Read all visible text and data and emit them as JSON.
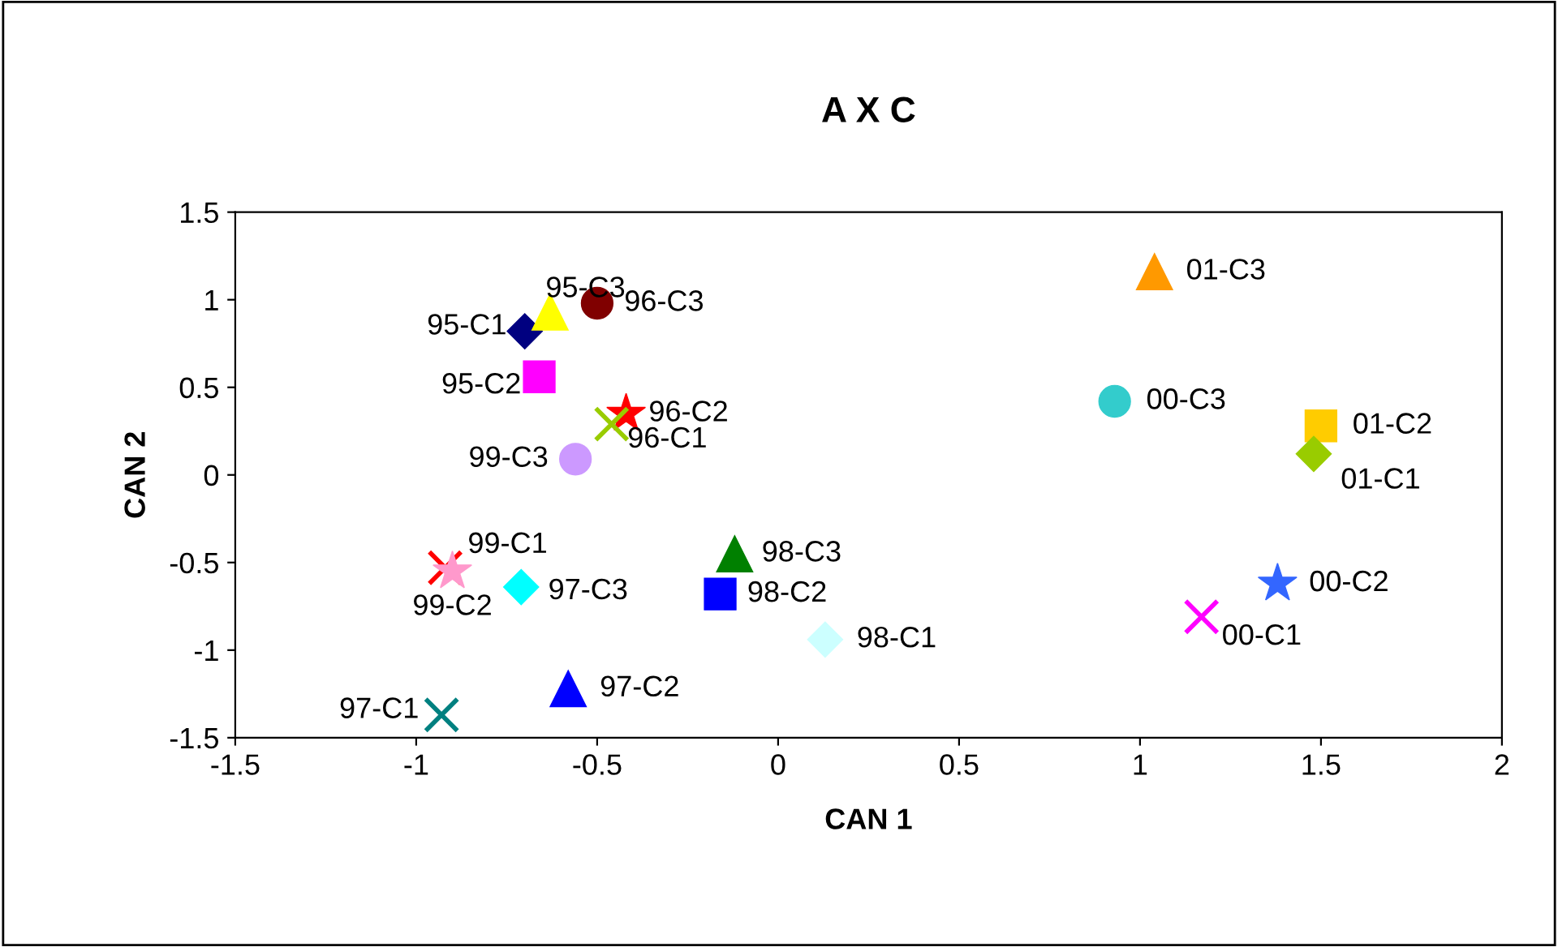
{
  "chart_data": {
    "type": "scatter",
    "title": "A X C",
    "xlabel": "CAN 1",
    "ylabel": "CAN 2",
    "xlim": [
      -1.5,
      2
    ],
    "ylim": [
      -1.5,
      1.5
    ],
    "xticks": [
      -1.5,
      -1,
      -0.5,
      0,
      0.5,
      1,
      1.5,
      2
    ],
    "yticks": [
      -1.5,
      -1,
      -0.5,
      0,
      0.5,
      1,
      1.5
    ],
    "grid": false,
    "legend": false,
    "series": [
      {
        "name": "95-C1",
        "color": "#000080",
        "marker": "diamond",
        "x": [
          -0.7
        ],
        "values": [
          0.82
        ]
      },
      {
        "name": "95-C3",
        "color": "#ffff00",
        "marker": "triangle",
        "x": [
          -0.63
        ],
        "values": [
          0.93
        ]
      },
      {
        "name": "96-C3",
        "color": "#800000",
        "marker": "circle",
        "x": [
          -0.5
        ],
        "values": [
          0.98
        ]
      },
      {
        "name": "95-C2",
        "color": "#ff00ff",
        "marker": "square",
        "x": [
          -0.66
        ],
        "values": [
          0.56
        ]
      },
      {
        "name": "96-C2",
        "color": "#ff0000",
        "marker": "star",
        "x": [
          -0.42
        ],
        "values": [
          0.35
        ]
      },
      {
        "name": "96-C1",
        "color": "#99cc00",
        "marker": "cross",
        "x": [
          -0.46
        ],
        "values": [
          0.29
        ]
      },
      {
        "name": "99-C3",
        "color": "#cc99ff",
        "marker": "circle",
        "x": [
          -0.56
        ],
        "values": [
          0.09
        ]
      },
      {
        "name": "99-C1",
        "color": "#ff0000",
        "marker": "cross",
        "x": [
          -0.92
        ],
        "values": [
          -0.53
        ]
      },
      {
        "name": "99-C2",
        "color": "#ff99cc",
        "marker": "star",
        "x": [
          -0.9
        ],
        "values": [
          -0.55
        ]
      },
      {
        "name": "97-C3",
        "color": "#00ffff",
        "marker": "diamond",
        "x": [
          -0.71
        ],
        "values": [
          -0.64
        ]
      },
      {
        "name": "98-C3",
        "color": "#008000",
        "marker": "triangle",
        "x": [
          -0.12
        ],
        "values": [
          -0.45
        ]
      },
      {
        "name": "98-C2",
        "color": "#0000ff",
        "marker": "square",
        "x": [
          -0.16
        ],
        "values": [
          -0.68
        ]
      },
      {
        "name": "98-C1",
        "color": "#ccffff",
        "marker": "diamond",
        "x": [
          0.13
        ],
        "values": [
          -0.94
        ]
      },
      {
        "name": "97-C2",
        "color": "#0000ff",
        "marker": "triangle",
        "x": [
          -0.58
        ],
        "values": [
          -1.22
        ]
      },
      {
        "name": "97-C1",
        "color": "#008080",
        "marker": "cross",
        "x": [
          -0.93
        ],
        "values": [
          -1.37
        ]
      },
      {
        "name": "01-C3",
        "color": "#ff9900",
        "marker": "triangle",
        "x": [
          1.04
        ],
        "values": [
          1.16
        ]
      },
      {
        "name": "00-C3",
        "color": "#33cccc",
        "marker": "circle",
        "x": [
          0.93
        ],
        "values": [
          0.42
        ]
      },
      {
        "name": "01-C2",
        "color": "#ffcc00",
        "marker": "square",
        "x": [
          1.5
        ],
        "values": [
          0.28
        ]
      },
      {
        "name": "01-C1",
        "color": "#99cc00",
        "marker": "diamond",
        "x": [
          1.48
        ],
        "values": [
          0.12
        ]
      },
      {
        "name": "00-C2",
        "color": "#3366ff",
        "marker": "star",
        "x": [
          1.38
        ],
        "values": [
          -0.62
        ]
      },
      {
        "name": "00-C1",
        "color": "#ff00ff",
        "marker": "cross",
        "x": [
          1.17
        ],
        "values": [
          -0.81
        ]
      }
    ]
  }
}
